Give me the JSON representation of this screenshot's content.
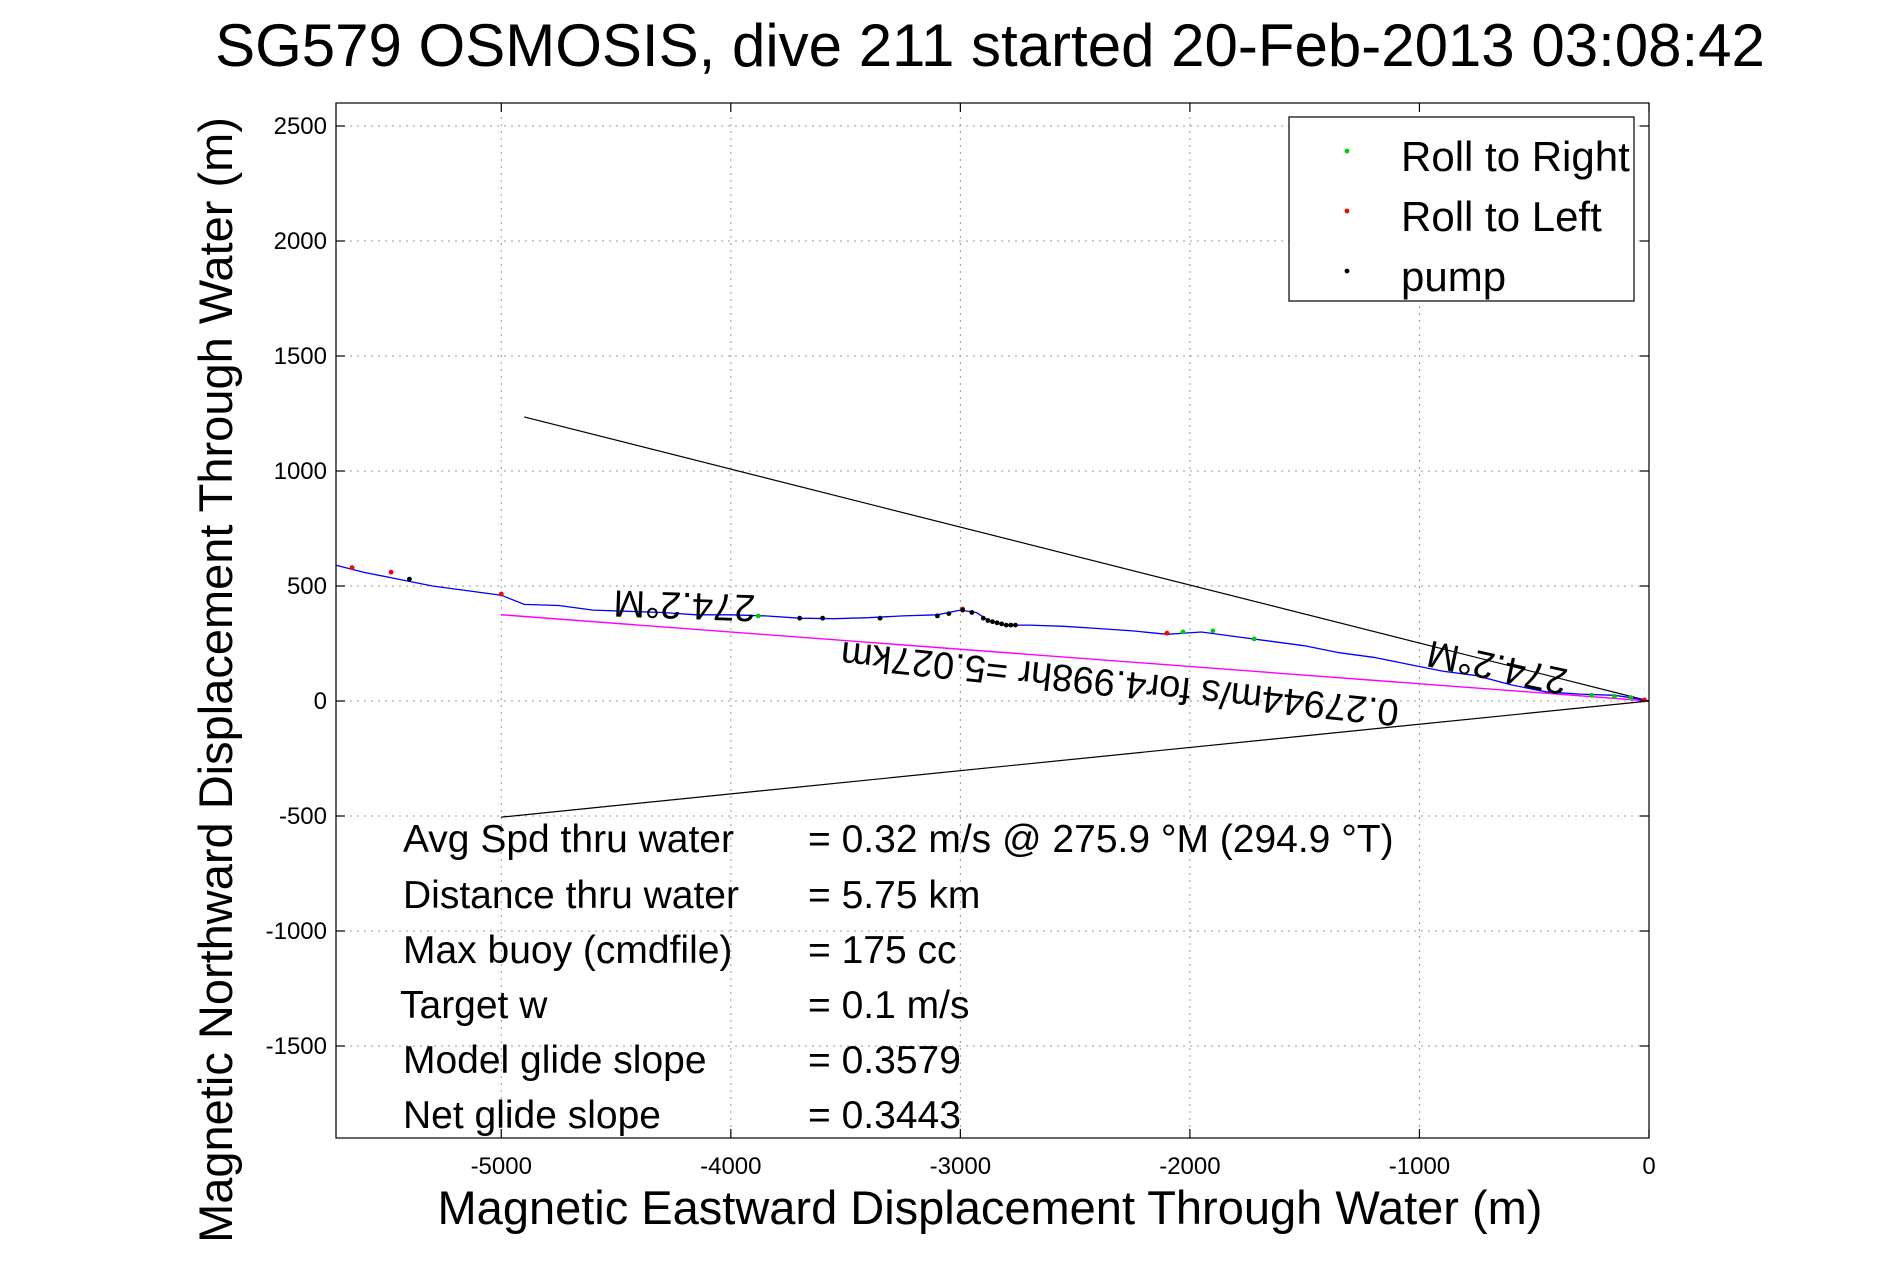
{
  "chart_data": {
    "type": "line",
    "title": "SG579 OSMOSIS, dive 211 started 20-Feb-2013 03:08:42",
    "xlabel": "Magnetic Eastward Displacement Through Water (m)",
    "ylabel": "Magnetic Northward Displacement Through Water (m)",
    "xlim": [
      -5720,
      0
    ],
    "ylim": [
      -1900,
      2600
    ],
    "xticks": [
      -5000,
      -4000,
      -3000,
      -2000,
      -1000,
      0
    ],
    "yticks": [
      -1500,
      -1000,
      -500,
      0,
      500,
      1000,
      1500,
      2000,
      2500
    ],
    "grid": true,
    "legend_position": "top-right",
    "legend": [
      {
        "label": "Roll to Right",
        "color": "#00cc00"
      },
      {
        "label": "Roll to Left",
        "color": "#ff0000"
      },
      {
        "label": "pump",
        "color": "#000000"
      }
    ],
    "track": {
      "name": "track",
      "color": "#0000ff",
      "x": [
        -5720,
        -5600,
        -5450,
        -5300,
        -5150,
        -5000,
        -4900,
        -4750,
        -4600,
        -4450,
        -4300,
        -4150,
        -4000,
        -3850,
        -3700,
        -3550,
        -3400,
        -3250,
        -3100,
        -3000,
        -2930,
        -2870,
        -2800,
        -2700,
        -2550,
        -2400,
        -2250,
        -2100,
        -1950,
        -1800,
        -1650,
        -1500,
        -1350,
        -1200,
        -1050,
        -900,
        -750,
        -600,
        -450,
        -300,
        -150,
        -50,
        0
      ],
      "y": [
        590,
        560,
        530,
        500,
        480,
        460,
        420,
        415,
        395,
        390,
        385,
        375,
        375,
        370,
        360,
        358,
        362,
        370,
        375,
        395,
        385,
        345,
        330,
        330,
        325,
        315,
        305,
        290,
        300,
        280,
        260,
        240,
        210,
        190,
        160,
        130,
        110,
        70,
        40,
        30,
        25,
        10,
        0
      ]
    },
    "roll_right": {
      "x": [
        -3880,
        -2030,
        -1900,
        -1720,
        -150,
        -250,
        -80
      ],
      "y": [
        370,
        300,
        305,
        270,
        20,
        25,
        15
      ]
    },
    "roll_left": {
      "x": [
        -5650,
        -5480,
        -5000,
        -2990,
        -2100,
        -20
      ],
      "y": [
        580,
        560,
        465,
        400,
        295,
        5
      ]
    },
    "pump": {
      "x": [
        -5400,
        -3700,
        -3600,
        -3350,
        -3100,
        -3050,
        -2990,
        -2950,
        -2900,
        -2880,
        -2860,
        -2840,
        -2820,
        -2800,
        -2780,
        -2760
      ],
      "y": [
        530,
        360,
        360,
        360,
        370,
        380,
        395,
        385,
        360,
        350,
        345,
        340,
        335,
        330,
        330,
        330
      ]
    },
    "cone_lines": {
      "color": "#000000",
      "upper": {
        "x": [
          -4900,
          0
        ],
        "y": [
          1235,
          0
        ]
      },
      "lower": {
        "x": [
          -5000,
          0
        ],
        "y": [
          -505,
          0
        ]
      }
    },
    "net_displacement_line": {
      "color": "#ff00ff",
      "x": [
        -5000,
        0
      ],
      "y": [
        375,
        0
      ]
    },
    "flipped_annotations": [
      {
        "text": "274.2°M",
        "x": -4200,
        "y": 470
      },
      {
        "text": "0.27944m/s for4.998hr =5.027km",
        "x": -2300,
        "y": 130
      },
      {
        "text": "274.2°M",
        "x": -650,
        "y": 200
      }
    ],
    "stats": [
      {
        "label": "Avg Spd thru water",
        "value": "=  0.32 m/s @ 275.9 °M (294.9 °T)"
      },
      {
        "label": "Distance thru water",
        "value": "=  5.75 km"
      },
      {
        "label": "Max buoy (cmdfile)",
        "value": "= 175 cc"
      },
      {
        "label": "Target w",
        "value": "= 0.1 m/s"
      },
      {
        "label": "Model glide slope",
        "value": "= 0.3579"
      },
      {
        "label": "Net glide slope",
        "value": "= 0.3443"
      }
    ]
  }
}
